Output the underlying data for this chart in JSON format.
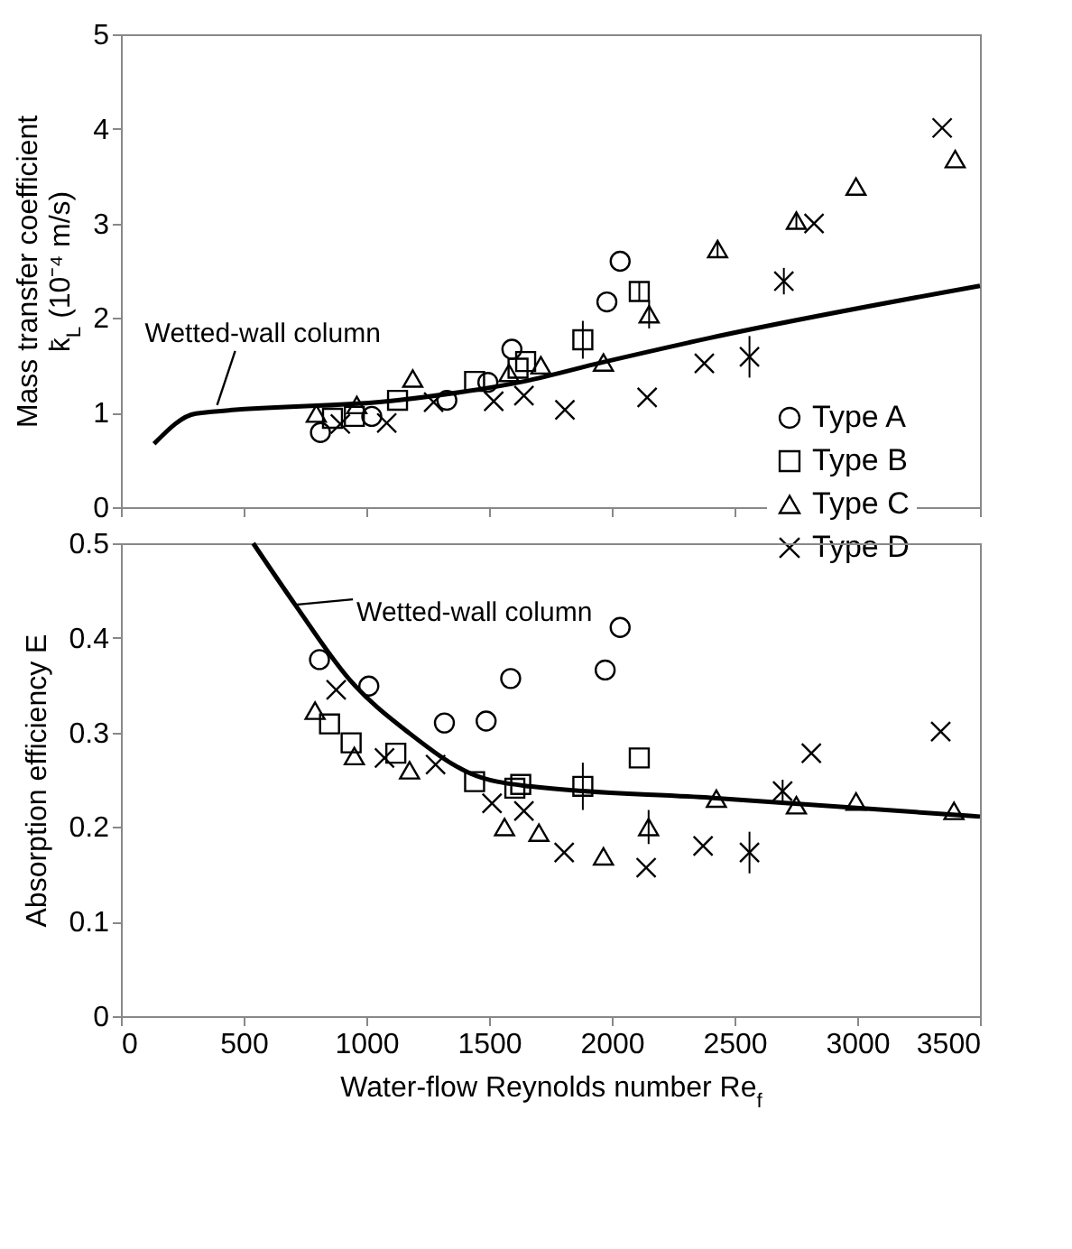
{
  "chart_data": [
    {
      "type": "scatter",
      "ylabel": "Mass transfer coefficient\nk̄$_{L}$ (10⁻⁴ m/s)",
      "xlim": [
        0,
        3500
      ],
      "xticks": [
        0,
        500,
        1000,
        1500,
        2000,
        2500,
        3000,
        3500
      ],
      "ylim": [
        0,
        5
      ],
      "yticks": [
        0,
        1,
        2,
        3,
        4,
        5
      ],
      "tick_labels": "y",
      "grid": false,
      "legend": "bottom right",
      "annotations": [
        {
          "text": "Wetted-wall column",
          "x": 392,
          "y": 1.08
        }
      ],
      "series": [
        {
          "name": "Type A",
          "type": "scatter",
          "marker": "circle",
          "color": "#000000",
          "x": [
            813,
            1022,
            1328,
            1495,
            1593,
            1980,
            2034
          ],
          "values": [
            0.79,
            0.96,
            1.13,
            1.32,
            1.67,
            2.17,
            2.6
          ]
        },
        {
          "name": "Type B",
          "type": "scatter",
          "marker": "square",
          "color": "#000000",
          "x": [
            862,
            951,
            1127,
            1441,
            1618,
            1649,
            1882,
            2112
          ],
          "values": [
            0.94,
            0.96,
            1.13,
            1.33,
            1.47,
            1.54,
            1.77,
            2.28
          ],
          "errors": [
            null,
            null,
            null,
            null,
            null,
            null,
            0.2,
            0.1
          ]
        },
        {
          "name": "Type C",
          "type": "scatter",
          "marker": "triangle",
          "color": "#000000",
          "x": [
            796,
            961,
            1189,
            1581,
            1711,
            1966,
            2152,
            2431,
            2752,
            2995,
            3399
          ],
          "values": [
            0.99,
            1.08,
            1.36,
            1.42,
            1.5,
            1.53,
            2.04,
            2.73,
            3.03,
            3.39,
            3.68
          ],
          "errors": [
            null,
            null,
            null,
            null,
            null,
            null,
            0.15,
            0.08,
            0.08,
            null,
            null
          ]
        },
        {
          "name": "Type D",
          "type": "scatter",
          "marker": "cross",
          "color": "#000000",
          "x": [
            894,
            1083,
            1274,
            1519,
            1642,
            1809,
            2144,
            2377,
            2561,
            2701,
            2824,
            3346
          ],
          "values": [
            0.88,
            0.89,
            1.11,
            1.12,
            1.18,
            1.03,
            1.16,
            1.52,
            1.59,
            2.39,
            3.0,
            4.01
          ],
          "errors": [
            null,
            null,
            null,
            null,
            null,
            null,
            null,
            null,
            0.22,
            0.14,
            null,
            null
          ]
        },
        {
          "type": "line",
          "marker": "none",
          "color": "#000000",
          "x": [
            135,
            306,
            1127,
            1642,
            1960,
            2401,
            3500
          ],
          "values": [
            0.67,
            0.99,
            1.13,
            1.33,
            1.53,
            1.79,
            2.34
          ]
        }
      ]
    },
    {
      "type": "scatter",
      "xlabel": "Water-flow Reynolds number Re$_{f}$",
      "ylabel": "Absorption efficiency E",
      "xlim": [
        0,
        3500
      ],
      "xticks": [
        0,
        500,
        1000,
        1500,
        2000,
        2500,
        3000,
        3500
      ],
      "ylim": [
        0,
        0.5
      ],
      "yticks": [
        0,
        0.1,
        0.2,
        0.3,
        0.4,
        0.5
      ],
      "grid": false,
      "annotations": [
        {
          "text": "Wetted-wall column",
          "x": 710,
          "y": 0.435
        }
      ],
      "series": [
        {
          "type": "scatter",
          "marker": "circle",
          "color": "#000000",
          "x": [
            809,
            1010,
            1318,
            1488,
            1588,
            1973,
            2034
          ],
          "values": [
            0.377,
            0.349,
            0.31,
            0.312,
            0.357,
            0.366,
            0.411
          ]
        },
        {
          "type": "scatter",
          "marker": "square",
          "color": "#000000",
          "x": [
            850,
            938,
            1120,
            1441,
            1605,
            1629,
            1882,
            2112
          ],
          "values": [
            0.309,
            0.289,
            0.278,
            0.248,
            0.241,
            0.245,
            0.243,
            0.273
          ],
          "errors": [
            null,
            null,
            null,
            null,
            null,
            null,
            0.025,
            null
          ]
        },
        {
          "type": "scatter",
          "marker": "triangle",
          "color": "#000000",
          "x": [
            791,
            951,
            1176,
            1563,
            1703,
            1966,
            2150,
            2426,
            2752,
            2995,
            3394
          ],
          "values": [
            0.323,
            0.275,
            0.26,
            0.2,
            0.194,
            0.169,
            0.2,
            0.23,
            0.223,
            0.227,
            0.217
          ],
          "errors": [
            null,
            null,
            null,
            null,
            null,
            null,
            0.018,
            null,
            null,
            null,
            null
          ]
        },
        {
          "type": "scatter",
          "marker": "cross",
          "color": "#000000",
          "x": [
            877,
            1074,
            1282,
            1512,
            1642,
            1806,
            2140,
            2372,
            2561,
            2696,
            2813,
            3340
          ],
          "values": [
            0.345,
            0.273,
            0.266,
            0.225,
            0.217,
            0.173,
            0.157,
            0.18,
            0.173,
            0.238,
            0.278,
            0.301
          ],
          "errors": [
            null,
            null,
            null,
            null,
            null,
            null,
            null,
            null,
            0.022,
            0.012,
            null,
            null
          ]
        },
        {
          "type": "line",
          "marker": "none",
          "color": "#000000",
          "x": [
            539,
            710,
            931,
            1176,
            1421,
            1666,
            2401,
            3500
          ],
          "values": [
            0.5,
            0.435,
            0.356,
            0.299,
            0.257,
            0.243,
            0.231,
            0.211
          ]
        }
      ]
    }
  ]
}
